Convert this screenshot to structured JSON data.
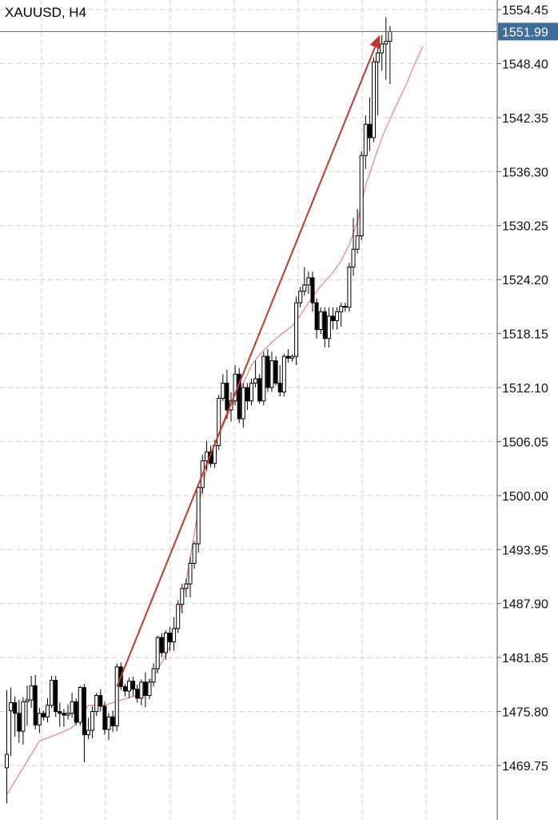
{
  "chart_data": {
    "type": "candlestick",
    "title": "XAUUSD, H4",
    "symbol": "XAUUSD",
    "timeframe": "H4",
    "ylim": [
      1465.0,
      1555.5
    ],
    "y_ticks": [
      "1554.45",
      "1548.40",
      "1542.35",
      "1536.30",
      "1530.25",
      "1524.20",
      "1518.15",
      "1512.10",
      "1506.05",
      "1500.00",
      "1493.95",
      "1487.90",
      "1481.85",
      "1475.80",
      "1469.75"
    ],
    "current_price": "1551.99",
    "grid": true,
    "colors": {
      "up": "#ffffff",
      "down": "#000000",
      "wick": "#000000",
      "moving_average": "#f08080",
      "arrow": "#c0392b",
      "price_line": "#4a6a8a",
      "price_label_bg": "#3c6d9b",
      "grid": "#cfcfcf"
    },
    "candles": [
      [
        1469.5,
        1478.2,
        1465.5,
        1471.0
      ],
      [
        1475.9,
        1478.5,
        1470.8,
        1476.8
      ],
      [
        1476.8,
        1477.5,
        1473.0,
        1475.6
      ],
      [
        1475.6,
        1477.1,
        1472.3,
        1473.6
      ],
      [
        1473.6,
        1477.4,
        1472.1,
        1476.9
      ],
      [
        1476.9,
        1478.7,
        1474.2,
        1477.1
      ],
      [
        1477.1,
        1479.8,
        1476.2,
        1478.7
      ],
      [
        1478.7,
        1479.9,
        1473.8,
        1474.3
      ],
      [
        1474.3,
        1476.2,
        1473.4,
        1475.6
      ],
      [
        1475.6,
        1475.9,
        1474.8,
        1475.2
      ],
      [
        1475.2,
        1477.3,
        1474.6,
        1476.5
      ],
      [
        1476.5,
        1479.8,
        1476.2,
        1479.3
      ],
      [
        1479.3,
        1479.8,
        1475.2,
        1475.8
      ],
      [
        1475.8,
        1476.8,
        1474.1,
        1475.6
      ],
      [
        1475.6,
        1476.1,
        1474.1,
        1475.4
      ],
      [
        1475.4,
        1476.6,
        1474.9,
        1475.6
      ],
      [
        1475.6,
        1477.9,
        1475.1,
        1476.9
      ],
      [
        1476.9,
        1477.3,
        1474.2,
        1474.6
      ],
      [
        1474.6,
        1478.7,
        1474.2,
        1478.5
      ],
      [
        1478.5,
        1478.9,
        1470.1,
        1473.2
      ],
      [
        1473.2,
        1475.1,
        1472.7,
        1473.7
      ],
      [
        1473.7,
        1476.4,
        1472.8,
        1475.8
      ],
      [
        1475.8,
        1477.9,
        1475.3,
        1477.6
      ],
      [
        1477.6,
        1478.3,
        1475.8,
        1476.4
      ],
      [
        1476.4,
        1476.9,
        1473.2,
        1473.8
      ],
      [
        1473.8,
        1475.6,
        1472.6,
        1475.2
      ],
      [
        1475.2,
        1475.9,
        1473.5,
        1474.2
      ],
      [
        1474.2,
        1481.2,
        1473.6,
        1480.8
      ],
      [
        1480.8,
        1481.3,
        1478.2,
        1478.6
      ],
      [
        1478.6,
        1478.9,
        1477.5,
        1478.1
      ],
      [
        1478.1,
        1479.6,
        1477.3,
        1479.2
      ],
      [
        1479.2,
        1479.7,
        1477.5,
        1478.3
      ],
      [
        1478.3,
        1478.8,
        1476.8,
        1477.3
      ],
      [
        1477.3,
        1479.4,
        1476.5,
        1479.1
      ],
      [
        1479.1,
        1480.2,
        1476.3,
        1477.6
      ],
      [
        1477.6,
        1479.5,
        1477.2,
        1479.1
      ],
      [
        1479.1,
        1481.2,
        1478.6,
        1480.6
      ],
      [
        1480.6,
        1484.3,
        1480.1,
        1484.1
      ],
      [
        1484.1,
        1484.6,
        1481.9,
        1482.4
      ],
      [
        1482.4,
        1484.9,
        1481.6,
        1484.6
      ],
      [
        1484.6,
        1485.3,
        1482.6,
        1483.6
      ],
      [
        1483.6,
        1486.4,
        1482.6,
        1485.1
      ],
      [
        1485.1,
        1488.3,
        1484.6,
        1487.8
      ],
      [
        1487.8,
        1490.1,
        1486.8,
        1489.6
      ],
      [
        1489.6,
        1490.7,
        1488.6,
        1490.1
      ],
      [
        1490.1,
        1493.1,
        1488.6,
        1492.4
      ],
      [
        1492.4,
        1494.9,
        1491.8,
        1494.6
      ],
      [
        1494.6,
        1501.2,
        1493.6,
        1500.9
      ],
      [
        1500.9,
        1504.6,
        1500.2,
        1503.9
      ],
      [
        1503.9,
        1506.1,
        1502.8,
        1504.9
      ],
      [
        1504.9,
        1505.6,
        1503.2,
        1503.6
      ],
      [
        1503.6,
        1506.2,
        1503.1,
        1505.6
      ],
      [
        1505.6,
        1511.3,
        1505.1,
        1510.9
      ],
      [
        1510.9,
        1513.6,
        1510.6,
        1512.6
      ],
      [
        1512.6,
        1514.1,
        1508.6,
        1509.6
      ],
      [
        1509.6,
        1511.6,
        1508.3,
        1510.6
      ],
      [
        1510.6,
        1514.6,
        1510.1,
        1513.6
      ],
      [
        1513.6,
        1514.3,
        1508.1,
        1508.6
      ],
      [
        1508.6,
        1512.6,
        1507.6,
        1512.1
      ],
      [
        1512.1,
        1512.6,
        1509.6,
        1510.6
      ],
      [
        1510.6,
        1513.1,
        1510.1,
        1512.6
      ],
      [
        1512.6,
        1515.1,
        1512.1,
        1513.1
      ],
      [
        1513.1,
        1513.6,
        1510.3,
        1510.6
      ],
      [
        1510.6,
        1516.1,
        1510.1,
        1515.6
      ],
      [
        1515.6,
        1516.4,
        1511.6,
        1512.1
      ],
      [
        1512.1,
        1516.1,
        1511.6,
        1515.1
      ],
      [
        1515.1,
        1515.6,
        1512.3,
        1512.6
      ],
      [
        1512.6,
        1514.6,
        1511.1,
        1511.6
      ],
      [
        1511.6,
        1515.9,
        1511.1,
        1515.6
      ],
      [
        1515.6,
        1516.4,
        1514.9,
        1515.4
      ],
      [
        1515.4,
        1515.8,
        1515.0,
        1515.6
      ],
      [
        1515.6,
        1522.3,
        1514.6,
        1521.6
      ],
      [
        1521.6,
        1523.4,
        1521.1,
        1522.9
      ],
      [
        1522.9,
        1525.6,
        1522.4,
        1523.6
      ],
      [
        1523.6,
        1525.1,
        1522.6,
        1524.4
      ],
      [
        1524.4,
        1525.1,
        1520.6,
        1521.6
      ],
      [
        1521.6,
        1522.1,
        1517.6,
        1518.6
      ],
      [
        1518.6,
        1521.1,
        1518.1,
        1520.6
      ],
      [
        1520.6,
        1521.1,
        1516.6,
        1517.6
      ],
      [
        1517.6,
        1521.1,
        1516.6,
        1520.1
      ],
      [
        1520.1,
        1521.1,
        1518.6,
        1519.6
      ],
      [
        1519.6,
        1521.1,
        1518.6,
        1520.6
      ],
      [
        1520.6,
        1521.6,
        1518.9,
        1521.2
      ],
      [
        1521.2,
        1521.6,
        1520.6,
        1521.1
      ],
      [
        1521.1,
        1526.1,
        1520.6,
        1525.6
      ],
      [
        1525.6,
        1531.1,
        1524.6,
        1527.6
      ],
      [
        1527.6,
        1532.1,
        1527.1,
        1529.1
      ],
      [
        1529.1,
        1538.6,
        1528.6,
        1538.1
      ],
      [
        1538.1,
        1542.6,
        1536.6,
        1541.6
      ],
      [
        1541.6,
        1544.6,
        1538.6,
        1540.1
      ],
      [
        1540.1,
        1549.1,
        1539.6,
        1548.6
      ],
      [
        1548.6,
        1550.4,
        1542.6,
        1549.6
      ],
      [
        1549.6,
        1551.6,
        1547.6,
        1550.6
      ],
      [
        1550.6,
        1553.6,
        1546.6,
        1550.9
      ],
      [
        1550.9,
        1552.6,
        1546.1,
        1551.99
      ]
    ],
    "moving_average": [
      [
        0,
        1466.5
      ],
      [
        8,
        1472.5
      ],
      [
        12,
        1473.2
      ],
      [
        16,
        1474.0
      ],
      [
        20,
        1476.5
      ],
      [
        24,
        1476.5
      ],
      [
        28,
        1477.1
      ],
      [
        32,
        1477.6
      ],
      [
        34,
        1478.6
      ],
      [
        36,
        1479.7
      ],
      [
        38,
        1481.3
      ],
      [
        40,
        1483.1
      ],
      [
        42,
        1486.0
      ],
      [
        44,
        1490.4
      ],
      [
        46,
        1495.8
      ],
      [
        48,
        1501.2
      ],
      [
        50,
        1504.6
      ],
      [
        52,
        1506.8
      ],
      [
        54,
        1508.8
      ],
      [
        56,
        1510.8
      ],
      [
        58,
        1512.6
      ],
      [
        60,
        1514.6
      ],
      [
        62,
        1515.8
      ],
      [
        64,
        1516.7
      ],
      [
        66,
        1517.6
      ],
      [
        68,
        1518.3
      ],
      [
        70,
        1519.0
      ],
      [
        72,
        1520.2
      ],
      [
        74,
        1521.6
      ],
      [
        76,
        1522.9
      ],
      [
        78,
        1524.0
      ],
      [
        80,
        1525.0
      ],
      [
        82,
        1526.3
      ],
      [
        84,
        1528.1
      ],
      [
        86,
        1530.7
      ],
      [
        88,
        1534.7
      ],
      [
        90,
        1537.5
      ],
      [
        92,
        1540.1
      ],
      [
        94,
        1542.2
      ],
      [
        96,
        1544.2
      ],
      [
        98,
        1546.1
      ],
      [
        100,
        1548.3
      ],
      [
        102,
        1550.3
      ]
    ],
    "arrow": {
      "from": [
        27,
        1478.6
      ],
      "to": [
        91.5,
        1551.6
      ]
    }
  }
}
